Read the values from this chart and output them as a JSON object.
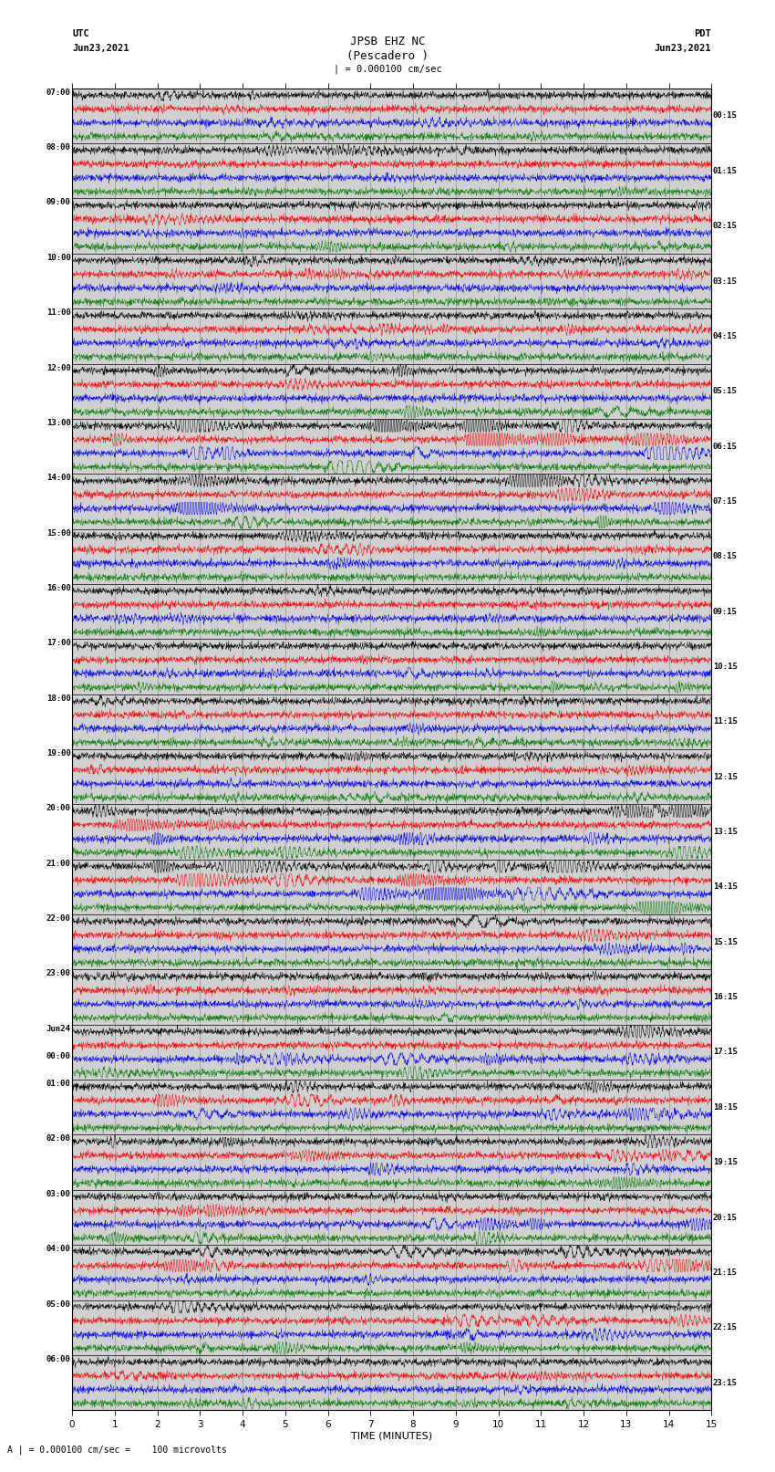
{
  "title_line1": "JPSB EHZ NC",
  "title_line2": "(Pescadero )",
  "scale_text": "| = 0.000100 cm/sec",
  "left_header1": "UTC",
  "left_header2": "Jun23,2021",
  "right_header1": "PDT",
  "right_header2": "Jun23,2021",
  "bottom_annot": "A | = 0.000100 cm/sec =    100 microvolts",
  "xlabel": "TIME (MINUTES)",
  "left_times": [
    "07:00",
    "08:00",
    "09:00",
    "10:00",
    "11:00",
    "12:00",
    "13:00",
    "14:00",
    "15:00",
    "16:00",
    "17:00",
    "18:00",
    "19:00",
    "20:00",
    "21:00",
    "22:00",
    "23:00",
    "Jun24\n00:00",
    "01:00",
    "02:00",
    "03:00",
    "04:00",
    "05:00",
    "06:00"
  ],
  "right_times": [
    "00:15",
    "01:15",
    "02:15",
    "03:15",
    "04:15",
    "05:15",
    "06:15",
    "07:15",
    "08:15",
    "09:15",
    "10:15",
    "11:15",
    "12:15",
    "13:15",
    "14:15",
    "15:15",
    "16:15",
    "17:15",
    "18:15",
    "19:15",
    "20:15",
    "21:15",
    "22:15",
    "23:15"
  ],
  "n_rows": 24,
  "traces_per_row": 4,
  "colors": [
    "black",
    "red",
    "blue",
    "green"
  ],
  "bg_color": "#d8d8d8",
  "plot_bg": "#d8d8d8",
  "fig_width": 8.5,
  "fig_height": 16.13,
  "dpi": 100,
  "x_ticks": [
    0,
    1,
    2,
    3,
    4,
    5,
    6,
    7,
    8,
    9,
    10,
    11,
    12,
    13,
    14,
    15
  ],
  "seed": 12345,
  "high_amp_rows": {
    "5": 2.0,
    "6": 5.0,
    "7": 3.5,
    "8": 1.5,
    "10": 1.5,
    "13": 2.5,
    "14": 3.5,
    "15": 1.8,
    "17": 2.0,
    "18": 2.0,
    "19": 2.0,
    "20": 2.5,
    "21": 3.0,
    "22": 2.0,
    "24": 2.0
  },
  "noise_base": 0.12,
  "trace_clip": 0.45
}
